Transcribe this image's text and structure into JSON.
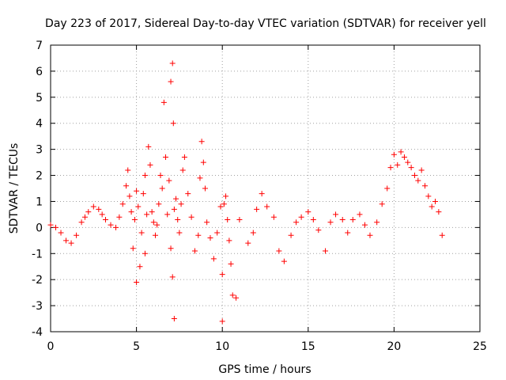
{
  "chart_data": {
    "type": "scatter",
    "title": "Day 223 of 2017, Sidereal Day-to-day VTEC variation (SDTVAR) for receiver yell",
    "xlabel": "GPS time / hours",
    "ylabel": "SDTVAR / TECUs",
    "xlim": [
      0,
      25
    ],
    "ylim": [
      -4,
      7
    ],
    "xticks": [
      0,
      5,
      10,
      15,
      20,
      25
    ],
    "yticks": [
      -4,
      -3,
      -2,
      -1,
      0,
      1,
      2,
      3,
      4,
      5,
      6,
      7
    ],
    "grid": true,
    "legend": "none",
    "marker": "+",
    "colors": {
      "series": "#ff0000",
      "grid": "#a0a0a0",
      "axes": "#000000"
    },
    "series": [
      {
        "name": "SDTVAR",
        "x": [
          0.0,
          0.3,
          0.6,
          0.9,
          1.2,
          1.5,
          1.8,
          2.0,
          2.2,
          2.5,
          2.8,
          3.0,
          3.2,
          3.5,
          3.8,
          4.0,
          4.2,
          4.4,
          4.5,
          4.6,
          4.7,
          4.8,
          4.9,
          5.0,
          5.0,
          5.1,
          5.2,
          5.3,
          5.4,
          5.5,
          5.5,
          5.6,
          5.7,
          5.8,
          5.9,
          6.0,
          6.1,
          6.2,
          6.3,
          6.4,
          6.5,
          6.6,
          6.7,
          6.8,
          6.9,
          7.0,
          7.0,
          7.1,
          7.1,
          7.15,
          7.2,
          7.2,
          7.3,
          7.4,
          7.5,
          7.6,
          7.7,
          7.8,
          8.0,
          8.2,
          8.4,
          8.6,
          8.7,
          8.8,
          8.9,
          9.0,
          9.1,
          9.3,
          9.5,
          9.7,
          9.9,
          10.0,
          10.0,
          10.1,
          10.2,
          10.3,
          10.4,
          10.5,
          10.6,
          10.8,
          11.0,
          11.5,
          11.8,
          12.0,
          12.3,
          12.6,
          13.0,
          13.3,
          13.6,
          14.0,
          14.3,
          14.6,
          15.0,
          15.3,
          15.6,
          16.0,
          16.3,
          16.6,
          17.0,
          17.3,
          17.6,
          18.0,
          18.3,
          18.6,
          19.0,
          19.3,
          19.6,
          19.8,
          20.0,
          20.2,
          20.4,
          20.6,
          20.8,
          21.0,
          21.2,
          21.4,
          21.6,
          21.8,
          22.0,
          22.2,
          22.4,
          22.6,
          22.8
        ],
        "y": [
          0.1,
          0.0,
          -0.2,
          -0.5,
          -0.6,
          -0.3,
          0.2,
          0.4,
          0.6,
          0.8,
          0.7,
          0.5,
          0.3,
          0.1,
          0.0,
          0.4,
          0.9,
          1.6,
          2.2,
          1.2,
          0.6,
          -0.8,
          0.3,
          -2.1,
          1.4,
          0.8,
          -1.5,
          -0.2,
          1.3,
          2.0,
          -1.0,
          0.5,
          3.1,
          2.4,
          0.6,
          0.2,
          -0.3,
          0.1,
          0.9,
          2.0,
          1.5,
          4.8,
          2.7,
          0.5,
          1.8,
          5.6,
          -0.8,
          6.3,
          -1.9,
          4.0,
          -3.5,
          0.7,
          1.1,
          0.3,
          -0.2,
          0.9,
          2.2,
          2.7,
          1.3,
          0.4,
          -0.9,
          -0.3,
          1.9,
          3.3,
          2.5,
          1.5,
          0.2,
          -0.4,
          -1.2,
          -0.2,
          0.8,
          -1.8,
          -3.6,
          0.9,
          1.2,
          0.3,
          -0.5,
          -1.4,
          -2.6,
          -2.7,
          0.3,
          -0.6,
          -0.2,
          0.7,
          1.3,
          0.8,
          0.4,
          -0.9,
          -1.3,
          -0.3,
          0.2,
          0.4,
          0.6,
          0.3,
          -0.1,
          -0.9,
          0.2,
          0.5,
          0.3,
          -0.2,
          0.3,
          0.5,
          0.1,
          -0.3,
          0.2,
          0.9,
          1.5,
          2.3,
          2.8,
          2.4,
          2.9,
          2.7,
          2.5,
          2.3,
          2.0,
          1.8,
          2.2,
          1.6,
          1.2,
          0.8,
          1.0,
          0.6,
          -0.3
        ]
      }
    ]
  }
}
